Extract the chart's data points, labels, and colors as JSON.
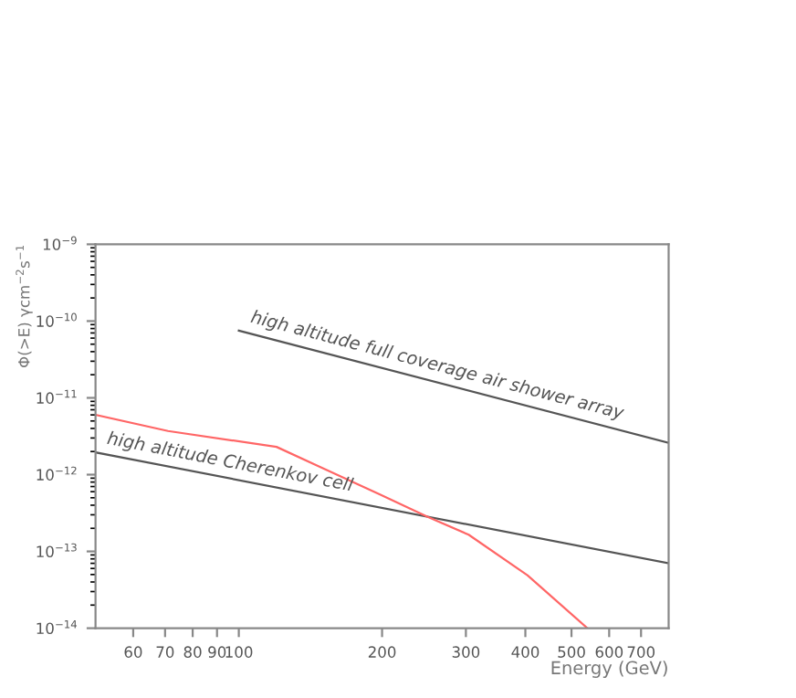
{
  "chart_data": {
    "type": "line",
    "xlabel": "Energy (GeV)",
    "ylabel": "Φ(>E) γcm$^{−2}$s$^{−1}$",
    "log": "xy",
    "grid": false,
    "legend": false,
    "marker": "none",
    "line_style": "solid",
    "xlim": [
      50,
      800
    ],
    "ylim": [
      1e-14,
      1e-09
    ],
    "xticks": [
      60,
      70,
      80,
      90,
      100,
      200,
      300,
      400,
      500,
      600,
      700
    ],
    "yticks": [
      {
        "value": 1e-14,
        "label": "10$^{−14}$"
      },
      {
        "value": 1e-13,
        "label": "10$^{−13}$"
      },
      {
        "value": 1e-12,
        "label": "10$^{−12}$"
      },
      {
        "value": 1e-11,
        "label": "10$^{−11}$"
      },
      {
        "value": 1e-10,
        "label": "10$^{−10}$"
      },
      {
        "value": 1e-09,
        "label": "10$^{−9}$"
      }
    ],
    "series": [
      {
        "name": "high altitude full coverage air shower array",
        "color": "#555555",
        "x": [
          100,
          800
        ],
        "values": [
          7.5e-11,
          2.6e-12
        ]
      },
      {
        "name": "high altitude Cherenkov cell",
        "color": "#555555",
        "x": [
          50,
          800
        ],
        "values": [
          1.95e-12,
          7e-14
        ]
      },
      {
        "color": "#ff6666",
        "x": [
          50,
          71,
          120,
          198,
          250,
          304,
          404,
          540
        ],
        "values": [
          6e-12,
          3.7e-12,
          2.3e-12,
          5.5e-13,
          2.8e-13,
          1.65e-13,
          4.9e-14,
          1e-14
        ]
      }
    ]
  }
}
